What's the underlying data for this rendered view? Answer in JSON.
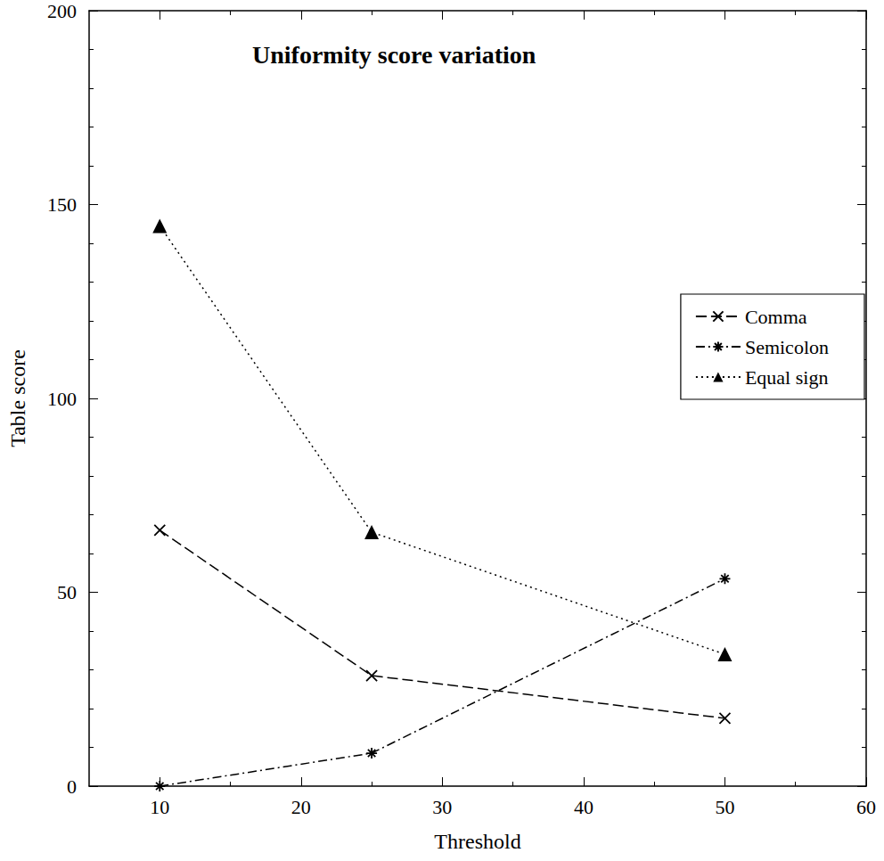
{
  "chart_data": {
    "type": "line",
    "title": "Uniformity score variation",
    "x_label": "Threshold",
    "y_label": "Table score",
    "x": [
      10,
      25,
      50
    ],
    "series": [
      {
        "name": "Comma",
        "color": "#000000",
        "marker": "x",
        "line_style": "dashed",
        "values": [
          66,
          28.5,
          17.5
        ]
      },
      {
        "name": "Semicolon",
        "color": "#000000",
        "marker": "asterisk",
        "line_style": "dashdot",
        "values": [
          0,
          8.5,
          53.5
        ]
      },
      {
        "name": "Equal sign",
        "color": "#000000",
        "marker": "triangle",
        "line_style": "dotted",
        "values": [
          144.5,
          65.5,
          34
        ]
      }
    ],
    "xlim": [
      5,
      60
    ],
    "xticks": [
      10,
      20,
      30,
      40,
      50,
      60
    ],
    "ylim": [
      0,
      200
    ],
    "yticks": [
      0,
      50,
      100,
      150,
      200
    ],
    "legend": "right",
    "grid": false
  }
}
